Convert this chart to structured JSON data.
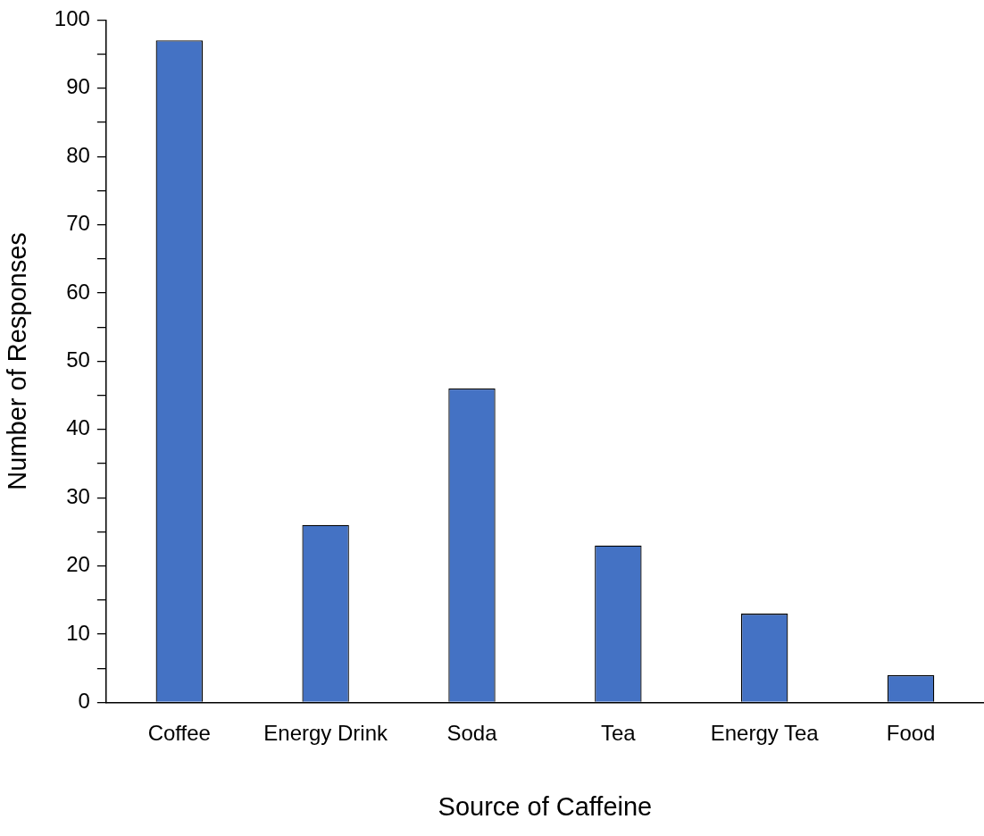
{
  "chart_data": {
    "type": "bar",
    "xlabel": "Source of Caffeine",
    "ylabel": "Number of Responses",
    "categories": [
      "Coffee",
      "Energy Drink",
      "Soda",
      "Tea",
      "Energy Tea",
      "Food"
    ],
    "values": [
      97,
      26,
      46,
      23,
      13,
      4
    ],
    "color": "#4472c4",
    "ylim": [
      0,
      100
    ],
    "yticks": [
      0,
      {
        "value": 5,
        "label": null
      },
      10,
      {
        "value": 15,
        "label": null
      },
      20,
      {
        "value": 25,
        "label": null
      },
      30,
      {
        "value": 35,
        "label": null
      },
      40,
      {
        "value": 45,
        "label": null
      },
      50,
      {
        "value": 55,
        "label": null
      },
      60,
      {
        "value": 65,
        "label": null
      },
      70,
      {
        "value": 75,
        "label": null
      },
      80,
      {
        "value": 85,
        "label": null
      },
      90,
      {
        "value": 95,
        "label": null
      },
      100
    ],
    "grid": false,
    "legend": false
  }
}
